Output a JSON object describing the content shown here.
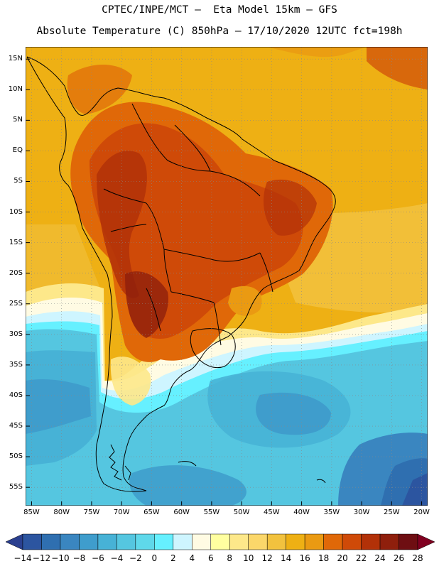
{
  "header": {
    "line1": "CPTEC/INPE/MCT –  Eta Model 15km – GFS",
    "line2": "Absolute Temperature (C) 850hPa – 17/10/2020 12UTC fct=198h"
  },
  "map": {
    "lat_labels": [
      "15N",
      "10N",
      "5N",
      "EQ",
      "5S",
      "10S",
      "15S",
      "20S",
      "25S",
      "30S",
      "35S",
      "40S",
      "45S",
      "50S",
      "55S"
    ],
    "lat_values": [
      15,
      10,
      5,
      0,
      -5,
      -10,
      -15,
      -20,
      -25,
      -30,
      -35,
      -40,
      -45,
      -50,
      -55
    ],
    "lon_labels": [
      "85W",
      "80W",
      "75W",
      "70W",
      "65W",
      "60W",
      "55W",
      "50W",
      "45W",
      "40W",
      "35W",
      "30W",
      "25W",
      "20W"
    ],
    "lon_values": [
      -85,
      -80,
      -75,
      -70,
      -65,
      -60,
      -55,
      -50,
      -45,
      -40,
      -35,
      -30,
      -25,
      -20
    ],
    "lon_range": [
      -86,
      -19
    ],
    "lat_range": [
      -58,
      17
    ]
  },
  "colorbar": {
    "labels": [
      "-14",
      "-12",
      "-10",
      "-8",
      "-6",
      "-4",
      "-2",
      "0",
      "2",
      "4",
      "6",
      "8",
      "10",
      "12",
      "14",
      "16",
      "18",
      "20",
      "22",
      "24",
      "26",
      "28"
    ],
    "colors": [
      "#2a3f8f",
      "#2c55a0",
      "#2f6fb0",
      "#3a86c0",
      "#3f9dcc",
      "#47b2d6",
      "#55c6e0",
      "#5fd8ea",
      "#66f0ff",
      "#cef5ff",
      "#fffbe3",
      "#ffffa0",
      "#fde88a",
      "#fbd76a",
      "#f2c23e",
      "#eeb014",
      "#ea9a12",
      "#e06808",
      "#cf4a08",
      "#b23108",
      "#8f1f0c",
      "#6e0e12",
      "#800020"
    ]
  }
}
